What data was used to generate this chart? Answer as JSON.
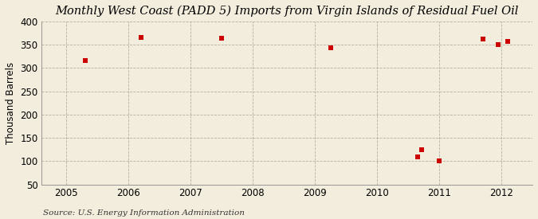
{
  "title": "Monthly West Coast (PADD 5) Imports from Virgin Islands of Residual Fuel Oil",
  "ylabel": "Thousand Barrels",
  "source": "Source: U.S. Energy Information Administration",
  "background_color": "#f2eddc",
  "plot_bg_color": "#f2eddc",
  "point_color": "#cc0000",
  "x_data": [
    2005.3,
    2006.2,
    2007.5,
    2009.25,
    2010.65,
    2010.72,
    2011.0,
    2011.7,
    2011.95,
    2012.1
  ],
  "y_data": [
    315,
    365,
    363,
    343,
    110,
    125,
    100,
    362,
    350,
    357
  ],
  "xlim": [
    2004.6,
    2012.5
  ],
  "ylim": [
    50,
    400
  ],
  "yticks": [
    50,
    100,
    150,
    200,
    250,
    300,
    350,
    400
  ],
  "xticks": [
    2005,
    2006,
    2007,
    2008,
    2009,
    2010,
    2011,
    2012
  ],
  "grid_color": "#b0a898",
  "title_fontsize": 10.5,
  "label_fontsize": 8.5,
  "tick_fontsize": 8.5,
  "source_fontsize": 7.5,
  "marker_size": 4
}
